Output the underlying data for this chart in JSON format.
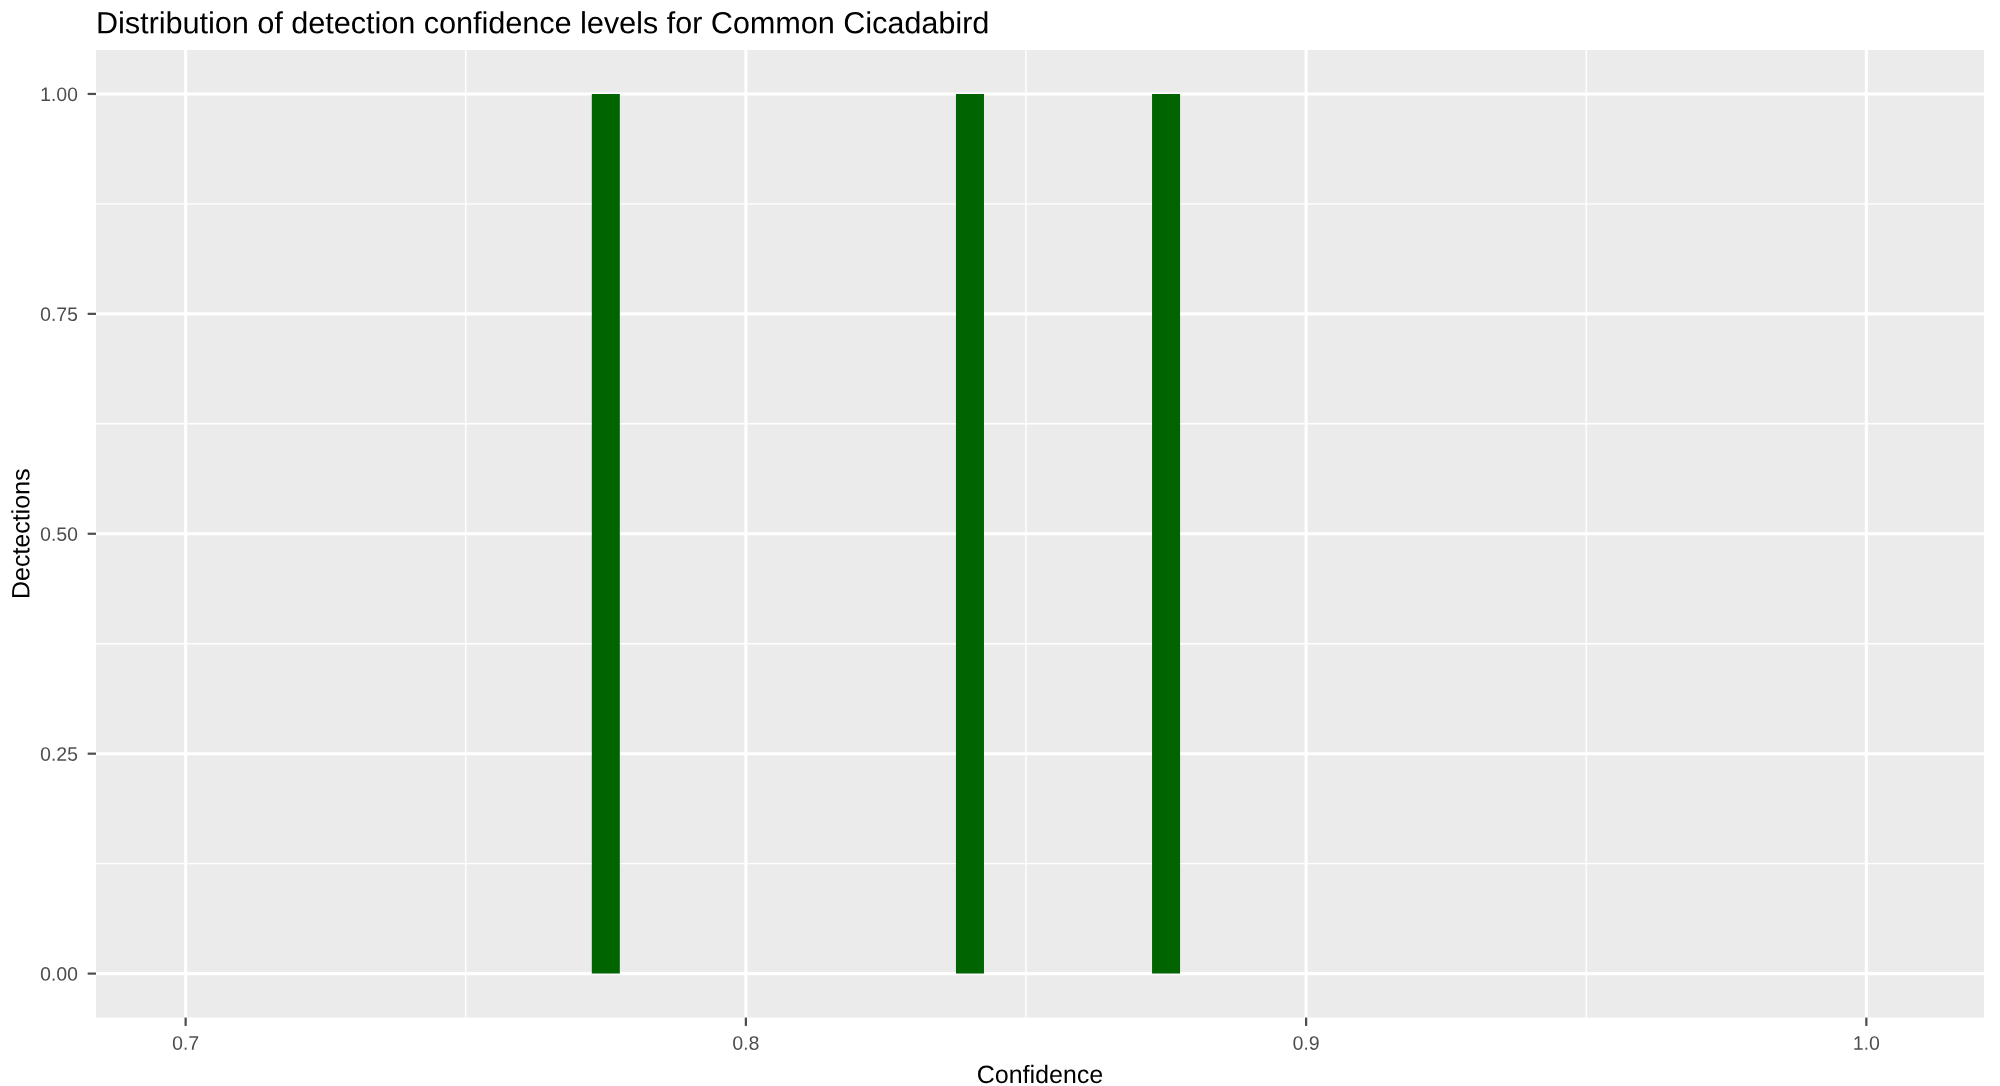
{
  "chart_data": {
    "type": "histogram",
    "title": "Distribution of detection confidence levels for Common Cicadabird",
    "xlabel": "Confidence",
    "ylabel": "Dectections",
    "bins": [
      0.7725,
      0.7775,
      0.7825,
      0.7875,
      0.7925,
      0.7975,
      0.8025,
      0.8075,
      0.8125,
      0.8175,
      0.8225,
      0.8275,
      0.8325,
      0.8375,
      0.8425,
      0.8475,
      0.8525,
      0.8575,
      0.8625,
      0.8675,
      0.8725,
      0.8775
    ],
    "values": [
      1,
      0,
      0,
      0,
      0,
      0,
      0,
      0,
      0,
      0,
      0,
      0,
      0,
      1,
      0,
      0,
      0,
      0,
      0,
      0,
      1
    ],
    "color": "#006400",
    "xlim": [
      0.684,
      1.021
    ],
    "xticks": [
      0.7,
      0.8,
      0.9,
      {
        "value": 1,
        "label": "1.0"
      }
    ],
    "ylim": [
      -0.05,
      1.05
    ],
    "yticks": [
      {
        "value": 0,
        "label": "0.00"
      },
      {
        "value": 0.25,
        "label": "0.25"
      },
      {
        "value": 0.5,
        "label": "0.50"
      },
      {
        "value": 0.75,
        "label": "0.75"
      },
      {
        "value": 1,
        "label": "1.00"
      }
    ],
    "grid": true
  }
}
